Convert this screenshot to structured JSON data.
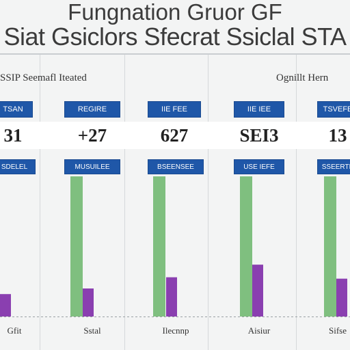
{
  "title_line1": "Fungnation Gruor GF",
  "title_line2": "Siat Gsiclors Sfecrat Ssiclal STA",
  "section_labels": [
    {
      "text": "SSIP Seemafl Iteated",
      "col": 0
    },
    {
      "text": "Ognillt Hern",
      "col": 3
    }
  ],
  "colors": {
    "header_blue": "#1f57a8",
    "bar_green": "#7fbf7f",
    "bar_purple": "#8a3fb0"
  },
  "columns": [
    {
      "header": "TSAN",
      "value": "31",
      "subheader": "SDELEL",
      "xlabel": "Gfit"
    },
    {
      "header": "REGIRE",
      "value": "+27",
      "subheader": "MUSUILEE",
      "xlabel": "Sstal"
    },
    {
      "header": "IIE FEE",
      "value": "627",
      "subheader": "BSEENSEE",
      "xlabel": "Ilecnnp"
    },
    {
      "header": "IIE IEE",
      "value": "SEI3",
      "subheader": "USE IEFE",
      "xlabel": "Aisiur"
    },
    {
      "header": "TSVEFE",
      "value": "13",
      "subheader": "SSEERTE",
      "xlabel": "Sifse"
    }
  ],
  "chart_data": {
    "type": "bar",
    "categories": [
      "Gfit",
      "Sstal",
      "Ilecnnp",
      "Aisiur",
      "Sifse"
    ],
    "ylim": [
      0,
      100
    ],
    "series": [
      {
        "values": [
          0,
          100,
          100,
          100,
          100
        ]
      },
      {
        "values": [
          16,
          20,
          28,
          37,
          27
        ]
      }
    ]
  }
}
